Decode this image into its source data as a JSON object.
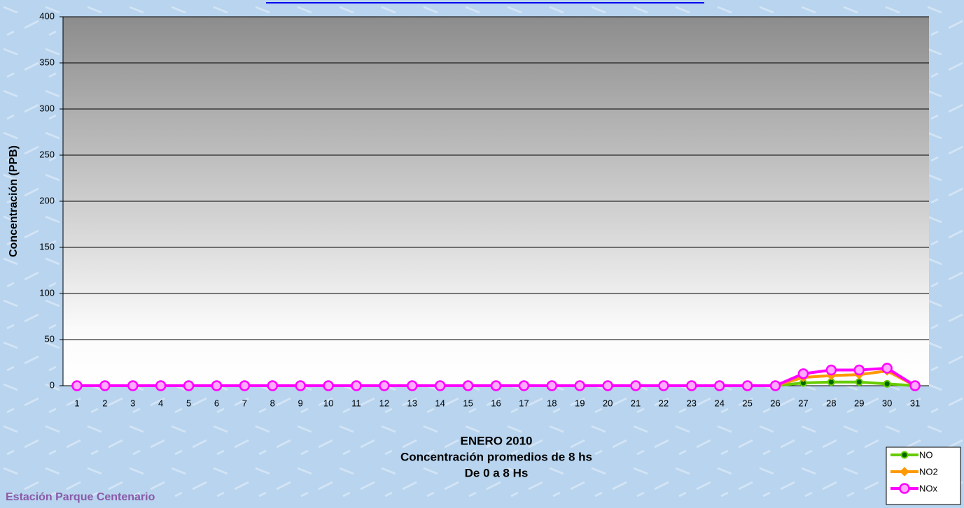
{
  "chart_data": {
    "type": "line",
    "title_lines": [
      "ENERO 2010",
      "Concentración promedios de 8 hs",
      "De 0 a 8 Hs"
    ],
    "y_label": "Concentración  (PPB)",
    "footer": "Estación Parque Centenario",
    "categories": [
      "1",
      "2",
      "3",
      "4",
      "5",
      "6",
      "7",
      "8",
      "9",
      "10",
      "11",
      "12",
      "13",
      "14",
      "15",
      "16",
      "17",
      "18",
      "19",
      "20",
      "21",
      "22",
      "23",
      "24",
      "25",
      "26",
      "27",
      "28",
      "29",
      "30",
      "31"
    ],
    "series": [
      {
        "name": "NO",
        "color": "#66cc00",
        "marker": "dot",
        "values": [
          0,
          0,
          0,
          0,
          0,
          0,
          0,
          0,
          0,
          0,
          0,
          0,
          0,
          0,
          0,
          0,
          0,
          0,
          0,
          0,
          0,
          0,
          0,
          0,
          0,
          0,
          3,
          4,
          4,
          2,
          0
        ]
      },
      {
        "name": "NO2",
        "color": "#ff9900",
        "marker": "diamond",
        "values": [
          0,
          0,
          0,
          0,
          0,
          0,
          0,
          0,
          0,
          0,
          0,
          0,
          0,
          0,
          0,
          0,
          0,
          0,
          0,
          0,
          0,
          0,
          0,
          0,
          0,
          0,
          9,
          11,
          12,
          16,
          0
        ]
      },
      {
        "name": "NOx",
        "color": "#ff00ff",
        "marker": "circle",
        "values": [
          0,
          0,
          0,
          0,
          0,
          0,
          0,
          0,
          0,
          0,
          0,
          0,
          0,
          0,
          0,
          0,
          0,
          0,
          0,
          0,
          0,
          0,
          0,
          0,
          0,
          0,
          13,
          17,
          17,
          19,
          0
        ]
      }
    ],
    "ylim": [
      0,
      400
    ],
    "yticks": [
      0,
      50,
      100,
      150,
      200,
      250,
      300,
      350,
      400
    ],
    "grid": true,
    "legend": "bottom-right"
  }
}
